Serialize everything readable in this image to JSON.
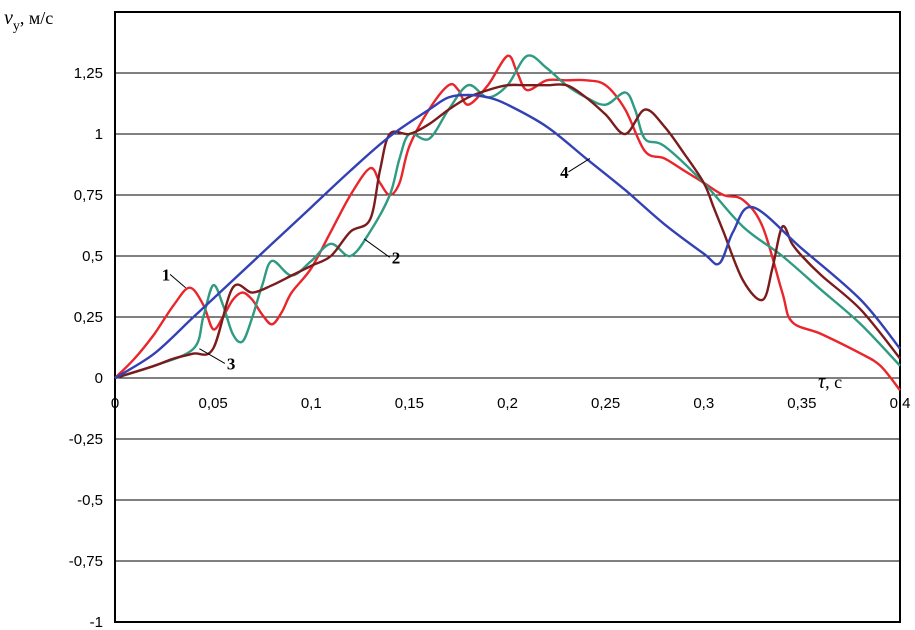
{
  "chart_data": {
    "type": "line",
    "ylabel": {
      "symbol": "v",
      "subscript": "y",
      "unit": ", м/с"
    },
    "xlabel": {
      "symbol": "τ",
      "unit": ", с"
    },
    "xlim": [
      0,
      0.4
    ],
    "ylim": [
      -1,
      1.5
    ],
    "x_ticks": [
      "0",
      "0,05",
      "0,1",
      "0,15",
      "0,2",
      "0,25",
      "0,3",
      "0,35",
      "0,4"
    ],
    "y_ticks": [
      "1,25",
      "1",
      "0,75",
      "0,5",
      "0,25",
      "0",
      "-0,25",
      "-0,5",
      "-0,75",
      "-1"
    ],
    "grid": "horizontal",
    "series": [
      {
        "name": "1",
        "color": "#e8262b",
        "x": [
          0,
          0.01,
          0.02,
          0.03,
          0.038,
          0.045,
          0.05,
          0.055,
          0.06,
          0.065,
          0.07,
          0.075,
          0.08,
          0.085,
          0.09,
          0.1,
          0.11,
          0.12,
          0.13,
          0.135,
          0.14,
          0.145,
          0.15,
          0.16,
          0.17,
          0.175,
          0.18,
          0.19,
          0.2,
          0.205,
          0.21,
          0.22,
          0.23,
          0.24,
          0.25,
          0.26,
          0.27,
          0.28,
          0.29,
          0.3,
          0.31,
          0.32,
          0.33,
          0.34,
          0.345,
          0.36,
          0.38,
          0.39,
          0.4
        ],
        "y": [
          0,
          0.08,
          0.18,
          0.3,
          0.37,
          0.3,
          0.2,
          0.25,
          0.32,
          0.35,
          0.32,
          0.26,
          0.22,
          0.27,
          0.35,
          0.45,
          0.6,
          0.75,
          0.86,
          0.8,
          0.75,
          0.8,
          0.95,
          1.1,
          1.2,
          1.18,
          1.12,
          1.2,
          1.32,
          1.25,
          1.18,
          1.22,
          1.22,
          1.22,
          1.2,
          1.1,
          0.93,
          0.9,
          0.85,
          0.8,
          0.75,
          0.73,
          0.62,
          0.35,
          0.23,
          0.18,
          0.1,
          0.05,
          -0.05
        ]
      },
      {
        "name": "2",
        "color": "#2e9b82",
        "x": [
          0,
          0.02,
          0.04,
          0.045,
          0.05,
          0.055,
          0.06,
          0.065,
          0.07,
          0.075,
          0.08,
          0.09,
          0.1,
          0.11,
          0.12,
          0.13,
          0.14,
          0.145,
          0.15,
          0.16,
          0.17,
          0.18,
          0.19,
          0.2,
          0.21,
          0.22,
          0.23,
          0.24,
          0.25,
          0.26,
          0.265,
          0.27,
          0.28,
          0.3,
          0.32,
          0.34,
          0.36,
          0.38,
          0.4
        ],
        "y": [
          0,
          0.05,
          0.12,
          0.25,
          0.38,
          0.3,
          0.18,
          0.15,
          0.25,
          0.38,
          0.48,
          0.42,
          0.48,
          0.55,
          0.5,
          0.6,
          0.75,
          0.9,
          1.0,
          0.98,
          1.1,
          1.2,
          1.15,
          1.2,
          1.32,
          1.27,
          1.2,
          1.15,
          1.12,
          1.17,
          1.1,
          0.98,
          0.95,
          0.8,
          0.62,
          0.5,
          0.36,
          0.22,
          0.05
        ]
      },
      {
        "name": "3",
        "color": "#7b1b1c",
        "x": [
          0,
          0.02,
          0.03,
          0.04,
          0.05,
          0.06,
          0.07,
          0.08,
          0.09,
          0.1,
          0.11,
          0.12,
          0.13,
          0.135,
          0.14,
          0.15,
          0.16,
          0.17,
          0.18,
          0.19,
          0.2,
          0.21,
          0.22,
          0.23,
          0.24,
          0.25,
          0.26,
          0.27,
          0.28,
          0.29,
          0.3,
          0.305,
          0.31,
          0.32,
          0.33,
          0.335,
          0.34,
          0.345,
          0.35,
          0.36,
          0.38,
          0.4
        ],
        "y": [
          0,
          0.05,
          0.08,
          0.1,
          0.12,
          0.37,
          0.35,
          0.38,
          0.42,
          0.46,
          0.5,
          0.6,
          0.65,
          0.85,
          1.0,
          1.0,
          1.04,
          1.1,
          1.15,
          1.18,
          1.2,
          1.2,
          1.2,
          1.2,
          1.15,
          1.08,
          1.0,
          1.1,
          1.03,
          0.92,
          0.8,
          0.7,
          0.6,
          0.4,
          0.32,
          0.45,
          0.62,
          0.55,
          0.5,
          0.42,
          0.28,
          0.08
        ]
      },
      {
        "name": "4",
        "color": "#3341b5",
        "x": [
          0,
          0.02,
          0.04,
          0.06,
          0.08,
          0.1,
          0.12,
          0.14,
          0.16,
          0.17,
          0.18,
          0.19,
          0.2,
          0.22,
          0.24,
          0.26,
          0.28,
          0.3,
          0.308,
          0.315,
          0.325,
          0.35,
          0.38,
          0.4
        ],
        "y": [
          0,
          0.1,
          0.25,
          0.4,
          0.55,
          0.7,
          0.85,
          0.99,
          1.1,
          1.15,
          1.16,
          1.15,
          1.12,
          1.03,
          0.9,
          0.77,
          0.63,
          0.51,
          0.47,
          0.6,
          0.7,
          0.53,
          0.32,
          0.12
        ]
      }
    ],
    "callouts": [
      {
        "text": "1",
        "series": "1"
      },
      {
        "text": "2",
        "series": "2"
      },
      {
        "text": "3",
        "series": "3"
      },
      {
        "text": "4",
        "series": "4"
      }
    ]
  }
}
